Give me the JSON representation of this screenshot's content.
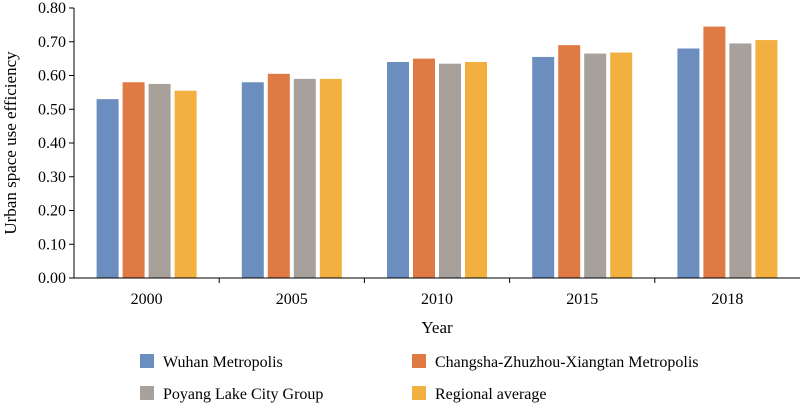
{
  "chart_data": {
    "type": "bar",
    "categories": [
      "2000",
      "2005",
      "2010",
      "2015",
      "2018"
    ],
    "series": [
      {
        "name": "Wuhan Metropolis",
        "color": "#6c8ebf",
        "values": [
          0.53,
          0.58,
          0.64,
          0.655,
          0.68
        ]
      },
      {
        "name": "Changsha-Zhuzhou-Xiangtan Metropolis",
        "color": "#e07a45",
        "values": [
          0.58,
          0.605,
          0.65,
          0.69,
          0.745
        ]
      },
      {
        "name": "Poyang Lake City Group",
        "color": "#a8a09a",
        "values": [
          0.575,
          0.59,
          0.635,
          0.665,
          0.695
        ]
      },
      {
        "name": "Regional average",
        "color": "#f2b040",
        "values": [
          0.555,
          0.59,
          0.64,
          0.668,
          0.705
        ]
      }
    ],
    "xlabel": "Year",
    "ylabel": "Urban space use efficiency",
    "ylim": [
      0,
      0.8
    ],
    "yticks": [
      "0.00",
      "0.10",
      "0.20",
      "0.30",
      "0.40",
      "0.50",
      "0.60",
      "0.70",
      "0.80"
    ],
    "grid": false,
    "legend_position": "bottom"
  }
}
